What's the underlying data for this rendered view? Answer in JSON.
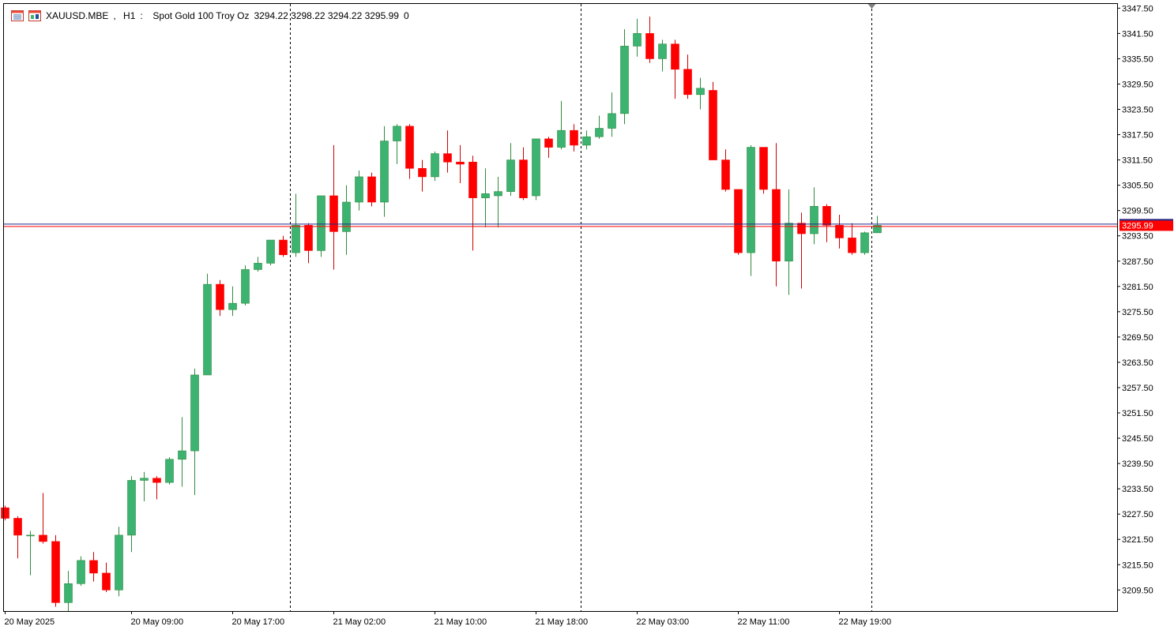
{
  "header": {
    "symbol": "XAUUSD.MBE",
    "timeframe": "H1",
    "description": "Spot Gold 100 Troy Oz",
    "ohlc": "3294.22 3298.22 3294.22 3295.99",
    "extra": "0"
  },
  "colors": {
    "bull": "#3cb371",
    "bear": "#ff0000",
    "wick_bull": "#2e8b3e",
    "wick_bear": "#cc0000",
    "bid_line": "#1c2a8a",
    "ask_line": "#ff0000",
    "price_label_bg": "#ff0000",
    "axis": "#000000",
    "separator": "#000000"
  },
  "chart_data": {
    "type": "candlestick",
    "symbol": "XAUUSD.MBE",
    "timeframe": "H1",
    "current_price": "3295.99",
    "y_range": [
      3204.5,
      3348.5
    ],
    "y_ticks": [
      "3347.50",
      "3341.50",
      "3335.50",
      "3329.50",
      "3323.50",
      "3317.50",
      "3311.50",
      "3305.50",
      "3299.50",
      "3293.50",
      "3287.50",
      "3281.50",
      "3275.50",
      "3269.50",
      "3263.50",
      "3257.50",
      "3251.50",
      "3245.50",
      "3239.50",
      "3233.50",
      "3227.50",
      "3221.50",
      "3215.50",
      "3209.50"
    ],
    "x_labels": [
      {
        "label": "20 May 2025",
        "bar": 0
      },
      {
        "label": "20 May 09:00",
        "bar": 10
      },
      {
        "label": "20 May 17:00",
        "bar": 18
      },
      {
        "label": "21 May 02:00",
        "bar": 26
      },
      {
        "label": "21 May 10:00",
        "bar": 34
      },
      {
        "label": "21 May 18:00",
        "bar": 42
      },
      {
        "label": "22 May 03:00",
        "bar": 50
      },
      {
        "label": "22 May 11:00",
        "bar": 58
      },
      {
        "label": "22 May 19:00",
        "bar": 66
      }
    ],
    "day_separators": [
      23,
      46,
      69
    ],
    "ohlc": [
      [
        3229.0,
        3229.5,
        3226.0,
        3226.5
      ],
      [
        3226.5,
        3227.0,
        3217.0,
        3222.5
      ],
      [
        3222.5,
        3223.5,
        3213.0,
        3222.5
      ],
      [
        3222.5,
        3232.5,
        3220.5,
        3221.0
      ],
      [
        3221.0,
        3222.5,
        3205.5,
        3206.5
      ],
      [
        3206.5,
        3214.0,
        3204.5,
        3211.0
      ],
      [
        3211.0,
        3217.5,
        3210.5,
        3216.5
      ],
      [
        3216.5,
        3218.5,
        3211.5,
        3213.5
      ],
      [
        3213.5,
        3216.0,
        3209.0,
        3209.5
      ],
      [
        3209.5,
        3224.5,
        3208.0,
        3222.5
      ],
      [
        3222.5,
        3236.5,
        3218.5,
        3235.5
      ],
      [
        3235.5,
        3237.5,
        3230.5,
        3236.0
      ],
      [
        3236.0,
        3236.5,
        3231.0,
        3235.0
      ],
      [
        3235.0,
        3241.0,
        3234.5,
        3240.5
      ],
      [
        3240.5,
        3250.5,
        3234.0,
        3242.5
      ],
      [
        3242.5,
        3262.0,
        3232.0,
        3260.5
      ],
      [
        3260.5,
        3284.5,
        3260.5,
        3282.0
      ],
      [
        3282.0,
        3283.0,
        3274.5,
        3276.0
      ],
      [
        3276.0,
        3281.5,
        3274.5,
        3277.5
      ],
      [
        3277.5,
        3286.5,
        3277.0,
        3285.5
      ],
      [
        3285.5,
        3288.5,
        3285.0,
        3287.0
      ],
      [
        3287.0,
        3292.5,
        3286.5,
        3292.5
      ],
      [
        3292.5,
        3293.5,
        3288.5,
        3289.0
      ],
      [
        3289.5,
        3303.5,
        3288.5,
        3296.0
      ],
      [
        3296.0,
        3296.5,
        3287.0,
        3290.0
      ],
      [
        3290.0,
        3303.0,
        3288.5,
        3303.0
      ],
      [
        3303.0,
        3315.0,
        3285.5,
        3294.5
      ],
      [
        3294.5,
        3305.5,
        3289.0,
        3301.5
      ],
      [
        3301.5,
        3309.0,
        3299.5,
        3307.5
      ],
      [
        3307.5,
        3308.5,
        3300.5,
        3301.5
      ],
      [
        3301.5,
        3319.5,
        3298.0,
        3316.0
      ],
      [
        3316.0,
        3320.0,
        3310.5,
        3319.5
      ],
      [
        3319.5,
        3320.0,
        3307.0,
        3309.5
      ],
      [
        3309.5,
        3311.5,
        3304.0,
        3307.5
      ],
      [
        3307.5,
        3313.5,
        3306.5,
        3313.0
      ],
      [
        3313.0,
        3318.5,
        3308.5,
        3311.0
      ],
      [
        3311.0,
        3315.0,
        3306.0,
        3310.5
      ],
      [
        3311.0,
        3312.5,
        3290.0,
        3302.5
      ],
      [
        3302.5,
        3309.5,
        3295.5,
        3303.5
      ],
      [
        3303.0,
        3307.5,
        3295.5,
        3304.0
      ],
      [
        3304.0,
        3315.5,
        3303.0,
        3311.5
      ],
      [
        3311.5,
        3314.5,
        3302.0,
        3302.5
      ],
      [
        3303.0,
        3316.5,
        3302.0,
        3316.5
      ],
      [
        3316.5,
        3317.0,
        3312.0,
        3314.5
      ],
      [
        3314.5,
        3325.5,
        3314.0,
        3318.5
      ],
      [
        3318.5,
        3320.0,
        3313.5,
        3315.0
      ],
      [
        3315.0,
        3318.5,
        3314.0,
        3317.0
      ],
      [
        3317.0,
        3322.0,
        3316.5,
        3319.0
      ],
      [
        3319.0,
        3327.5,
        3317.0,
        3322.5
      ],
      [
        3322.5,
        3342.5,
        3320.0,
        3338.5
      ],
      [
        3338.5,
        3345.0,
        3336.0,
        3341.5
      ],
      [
        3341.5,
        3345.5,
        3334.5,
        3335.5
      ],
      [
        3335.5,
        3340.0,
        3332.5,
        3339.0
      ],
      [
        3339.0,
        3340.0,
        3326.0,
        3333.0
      ],
      [
        3333.0,
        3336.5,
        3326.0,
        3327.0
      ],
      [
        3327.0,
        3331.0,
        3323.5,
        3328.5
      ],
      [
        3328.0,
        3330.0,
        3311.5,
        3311.5
      ],
      [
        3311.5,
        3314.0,
        3304.0,
        3304.5
      ],
      [
        3304.5,
        3304.5,
        3289.0,
        3289.5
      ],
      [
        3289.5,
        3315.0,
        3284.0,
        3314.5
      ],
      [
        3314.5,
        3314.5,
        3303.5,
        3304.5
      ],
      [
        3304.5,
        3315.5,
        3281.5,
        3287.5
      ],
      [
        3287.5,
        3304.5,
        3279.5,
        3296.5
      ],
      [
        3296.5,
        3299.0,
        3281.0,
        3294.0
      ],
      [
        3294.0,
        3305.0,
        3291.5,
        3300.5
      ],
      [
        3300.5,
        3301.0,
        3292.0,
        3296.0
      ],
      [
        3296.0,
        3298.5,
        3290.5,
        3293.0
      ],
      [
        3293.0,
        3296.5,
        3289.0,
        3289.5
      ],
      [
        3289.5,
        3294.5,
        3289.0,
        3294.22
      ],
      [
        3294.22,
        3298.22,
        3294.22,
        3295.99
      ]
    ]
  }
}
